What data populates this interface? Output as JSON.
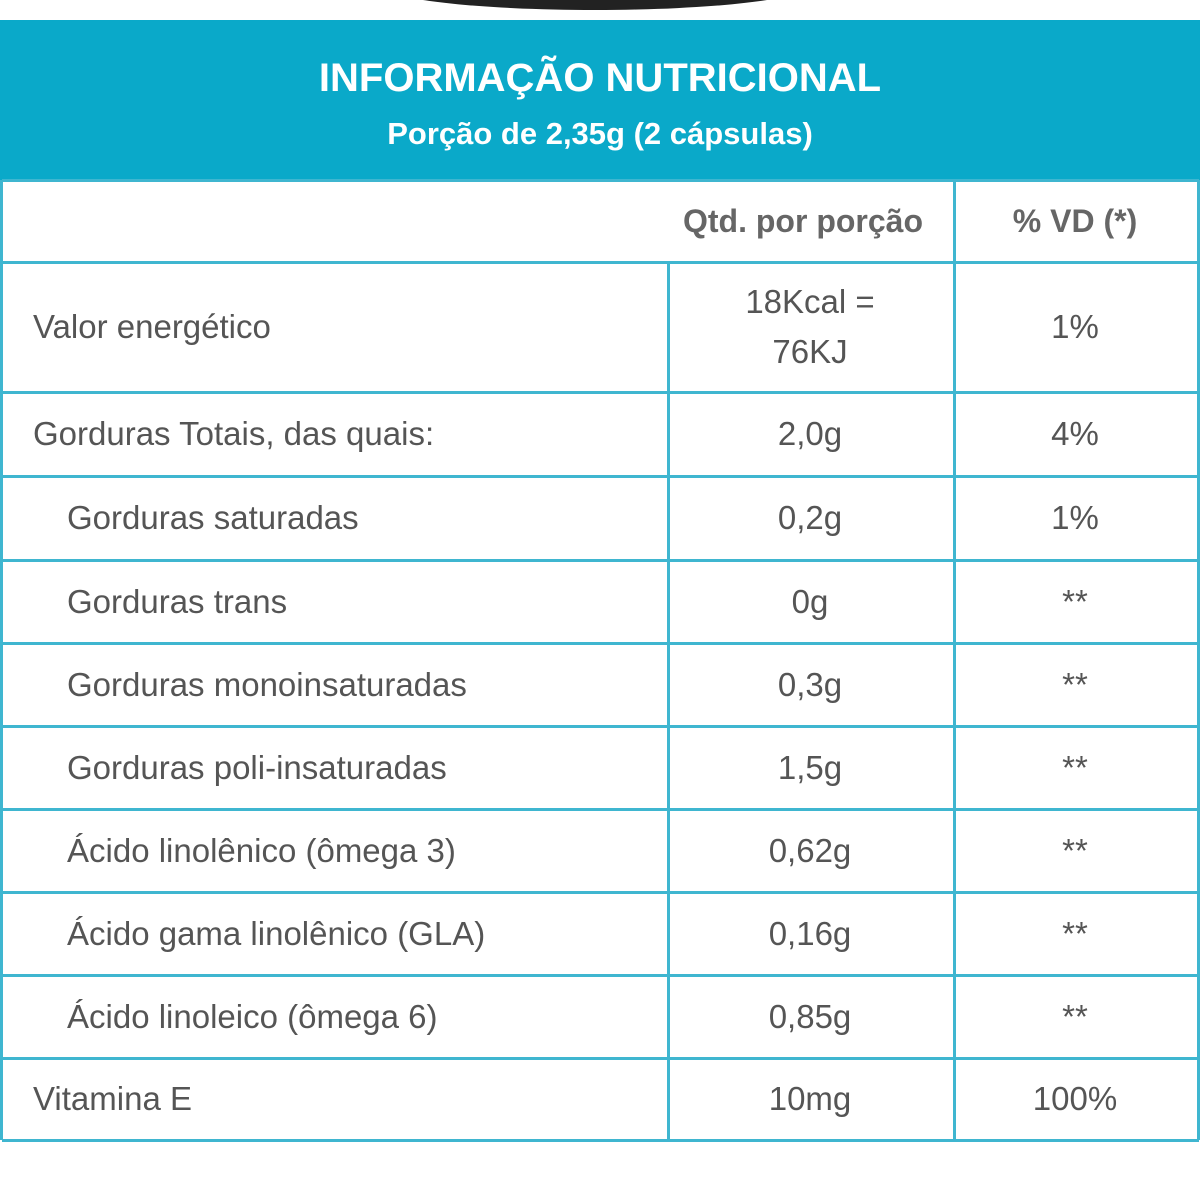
{
  "header": {
    "title": "INFORMAÇÃO NUTRICIONAL",
    "subtitle": "Porção de 2,35g (2 cápsulas)"
  },
  "table": {
    "columns": [
      "Qtd. por porção",
      "% VD (*)"
    ],
    "rows": [
      [
        "Valor energético",
        "18Kcal = 76KJ",
        "1%"
      ],
      [
        "Gorduras Totais, das quais:",
        "2,0g",
        "4%"
      ],
      [
        "Gorduras saturadas",
        "0,2g",
        "1%"
      ],
      [
        "Gorduras trans",
        "0g",
        "**"
      ],
      [
        "Gorduras monoinsaturadas",
        "0,3g",
        "**"
      ],
      [
        "Gorduras poli-insaturadas",
        "1,5g",
        "**"
      ],
      [
        "Ácido linolênico (ômega 3)",
        "0,62g",
        "**"
      ],
      [
        "Ácido gama linolênico (GLA)",
        "0,16g",
        "**"
      ],
      [
        "Ácido linoleico (ômega 6)",
        "0,85g",
        "**"
      ],
      [
        "Vitamina E",
        "10mg",
        "100%"
      ]
    ]
  }
}
